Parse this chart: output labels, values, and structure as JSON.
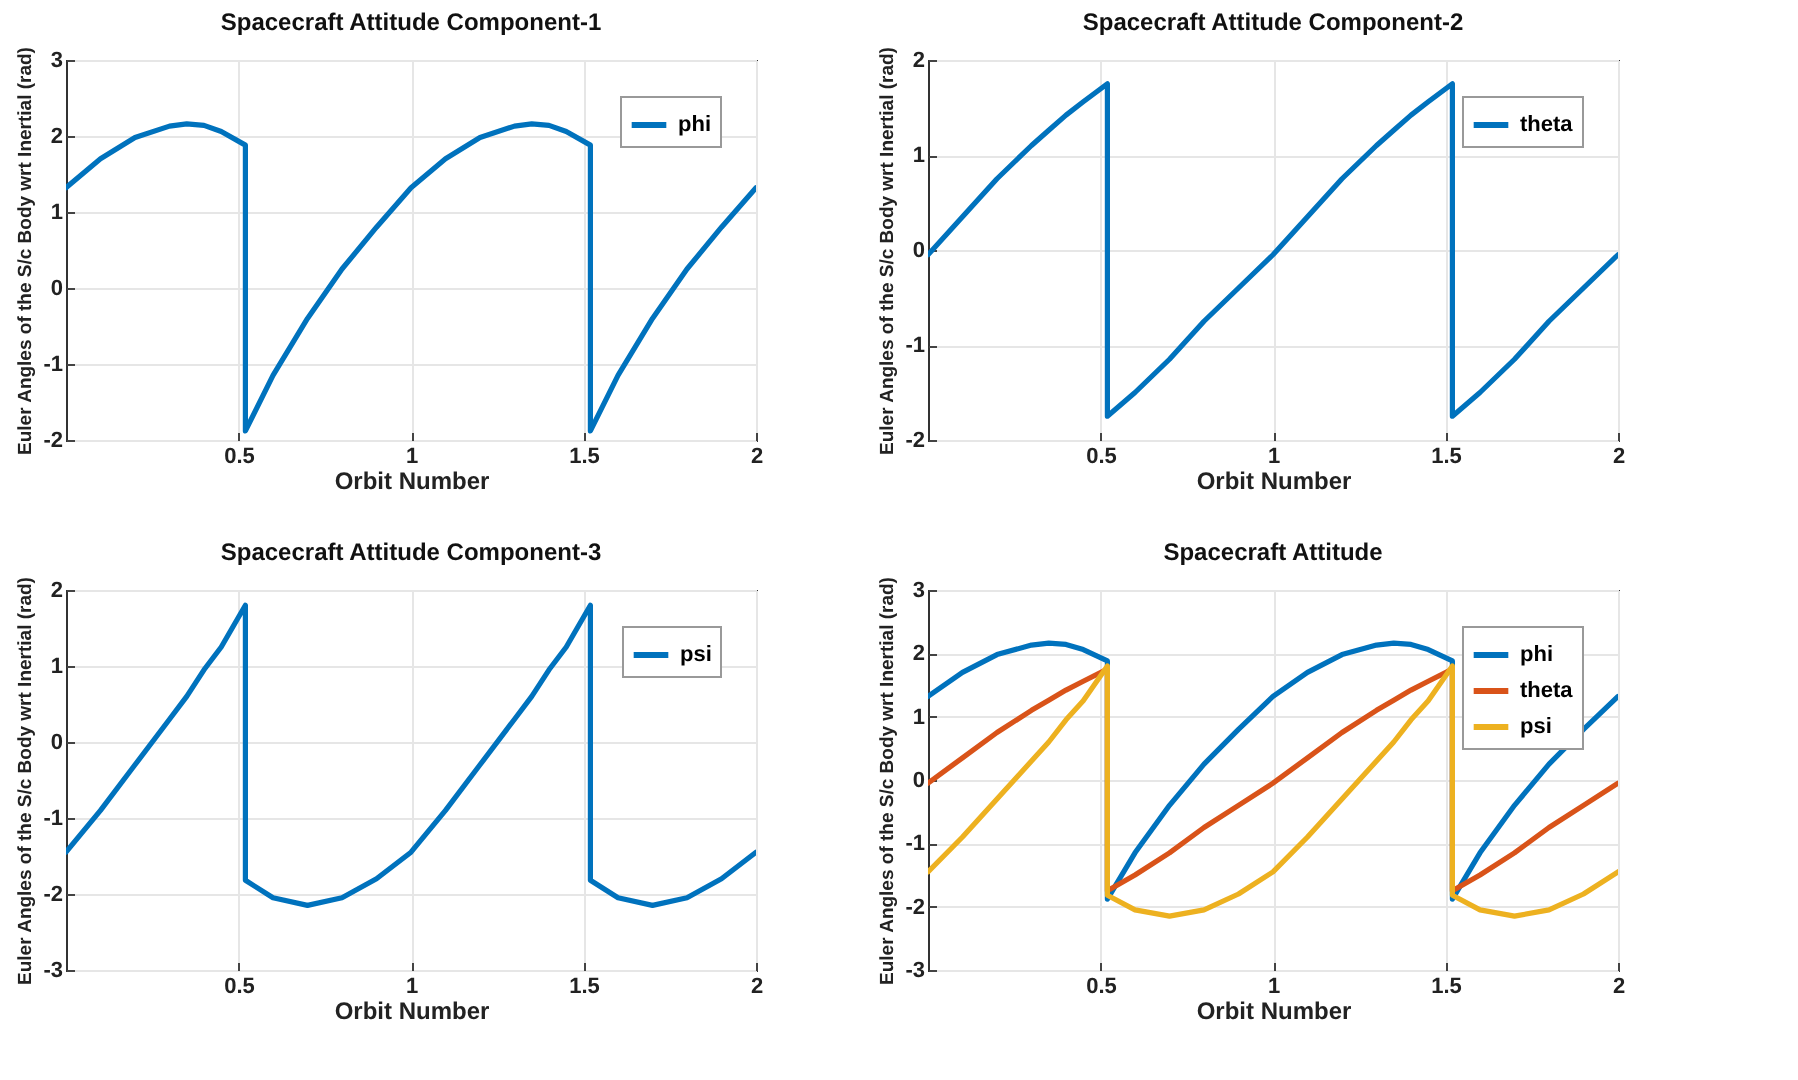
{
  "chart_data": [
    {
      "type": "line",
      "title": "Spacecraft Attitude Component-1",
      "xlabel": "Orbit Number",
      "ylabel": "Euler Angles of the S/c Body wrt Inertial (rad)",
      "x": [
        0,
        0.1,
        0.2,
        0.3,
        0.35,
        0.4,
        0.45,
        0.52,
        0.52,
        0.6,
        0.7,
        0.8,
        0.9,
        1.0,
        1.1,
        1.2,
        1.3,
        1.35,
        1.4,
        1.45,
        1.52,
        1.52,
        1.6,
        1.7,
        1.8,
        1.9,
        2.0
      ],
      "series": [
        {
          "name": "phi",
          "color": "#0072bd",
          "values": [
            1.32,
            1.7,
            1.98,
            2.13,
            2.16,
            2.14,
            2.06,
            1.88,
            -1.88,
            -1.15,
            -0.4,
            0.25,
            0.8,
            1.32,
            1.7,
            1.98,
            2.13,
            2.16,
            2.14,
            2.06,
            1.88,
            -1.88,
            -1.15,
            -0.4,
            0.25,
            0.8,
            1.32
          ]
        }
      ],
      "xlim": [
        0,
        2
      ],
      "xticks": [
        0.5,
        1,
        1.5,
        2
      ],
      "ylim": [
        -2,
        3
      ],
      "yticks": [
        -2,
        -1,
        0,
        1,
        2,
        3
      ],
      "grid": true,
      "legend": "top right"
    },
    {
      "type": "line",
      "title": "Spacecraft Attitude Component-2",
      "xlabel": "Orbit Number",
      "ylabel": "Euler Angles of the S/c Body wrt Inertial (rad)",
      "x": [
        0,
        0.1,
        0.2,
        0.3,
        0.35,
        0.4,
        0.45,
        0.52,
        0.52,
        0.6,
        0.7,
        0.8,
        0.9,
        1.0,
        1.1,
        1.2,
        1.3,
        1.35,
        1.4,
        1.45,
        1.52,
        1.52,
        1.6,
        1.7,
        1.8,
        1.9,
        2.0
      ],
      "series": [
        {
          "name": "theta",
          "color": "#0072bd",
          "values": [
            -0.05,
            0.35,
            0.75,
            1.1,
            1.26,
            1.42,
            1.56,
            1.75,
            -1.75,
            -1.5,
            -1.15,
            -0.75,
            -0.4,
            -0.05,
            0.35,
            0.75,
            1.1,
            1.26,
            1.42,
            1.56,
            1.75,
            -1.75,
            -1.5,
            -1.15,
            -0.75,
            -0.4,
            -0.05
          ]
        }
      ],
      "xlim": [
        0,
        2
      ],
      "xticks": [
        0.5,
        1,
        1.5,
        2
      ],
      "ylim": [
        -2,
        2
      ],
      "yticks": [
        -2,
        -1,
        0,
        1,
        2
      ],
      "grid": true,
      "legend": "top right"
    },
    {
      "type": "line",
      "title": "Spacecraft Attitude Component-3",
      "xlabel": "Orbit Number",
      "ylabel": "Euler Angles of the S/c Body wrt Inertial (rad)",
      "x": [
        0,
        0.1,
        0.2,
        0.3,
        0.35,
        0.4,
        0.45,
        0.52,
        0.52,
        0.6,
        0.7,
        0.8,
        0.9,
        1.0,
        1.1,
        1.2,
        1.3,
        1.35,
        1.4,
        1.45,
        1.52,
        1.52,
        1.6,
        1.7,
        1.8,
        1.9,
        2.0
      ],
      "series": [
        {
          "name": "psi",
          "color": "#0072bd",
          "values": [
            -1.45,
            -0.9,
            -0.3,
            0.3,
            0.6,
            0.95,
            1.25,
            1.8,
            -1.82,
            -2.05,
            -2.15,
            -2.05,
            -1.8,
            -1.45,
            -0.9,
            -0.3,
            0.3,
            0.6,
            0.95,
            1.25,
            1.8,
            -1.82,
            -2.05,
            -2.15,
            -2.05,
            -1.8,
            -1.45
          ]
        }
      ],
      "xlim": [
        0,
        2
      ],
      "xticks": [
        0.5,
        1,
        1.5,
        2
      ],
      "ylim": [
        -3,
        2
      ],
      "yticks": [
        -3,
        -2,
        -1,
        0,
        1,
        2
      ],
      "grid": true,
      "legend": "top right"
    },
    {
      "type": "line",
      "title": "Spacecraft Attitude",
      "xlabel": "Orbit Number",
      "ylabel": "Euler Angles of the S/c Body wrt Inertial (rad)",
      "x": [
        0,
        0.1,
        0.2,
        0.3,
        0.35,
        0.4,
        0.45,
        0.52,
        0.52,
        0.6,
        0.7,
        0.8,
        0.9,
        1.0,
        1.1,
        1.2,
        1.3,
        1.35,
        1.4,
        1.45,
        1.52,
        1.52,
        1.6,
        1.7,
        1.8,
        1.9,
        2.0
      ],
      "series": [
        {
          "name": "phi",
          "color": "#0072bd",
          "values": [
            1.32,
            1.7,
            1.98,
            2.13,
            2.16,
            2.14,
            2.06,
            1.88,
            -1.88,
            -1.15,
            -0.4,
            0.25,
            0.8,
            1.32,
            1.7,
            1.98,
            2.13,
            2.16,
            2.14,
            2.06,
            1.88,
            -1.88,
            -1.15,
            -0.4,
            0.25,
            0.8,
            1.32
          ]
        },
        {
          "name": "theta",
          "color": "#d95319",
          "values": [
            -0.05,
            0.35,
            0.75,
            1.1,
            1.26,
            1.42,
            1.56,
            1.75,
            -1.75,
            -1.5,
            -1.15,
            -0.75,
            -0.4,
            -0.05,
            0.35,
            0.75,
            1.1,
            1.26,
            1.42,
            1.56,
            1.75,
            -1.75,
            -1.5,
            -1.15,
            -0.75,
            -0.4,
            -0.05
          ]
        },
        {
          "name": "psi",
          "color": "#edb120",
          "values": [
            -1.45,
            -0.9,
            -0.3,
            0.3,
            0.6,
            0.95,
            1.25,
            1.8,
            -1.82,
            -2.05,
            -2.15,
            -2.05,
            -1.8,
            -1.45,
            -0.9,
            -0.3,
            0.3,
            0.6,
            0.95,
            1.25,
            1.8,
            -1.82,
            -2.05,
            -2.15,
            -2.05,
            -1.8,
            -1.45
          ]
        }
      ],
      "xlim": [
        0,
        2
      ],
      "xticks": [
        0.5,
        1,
        1.5,
        2
      ],
      "ylim": [
        -3,
        3
      ],
      "yticks": [
        -3,
        -2,
        -1,
        0,
        1,
        2,
        3
      ],
      "grid": true,
      "legend": "top right"
    }
  ]
}
